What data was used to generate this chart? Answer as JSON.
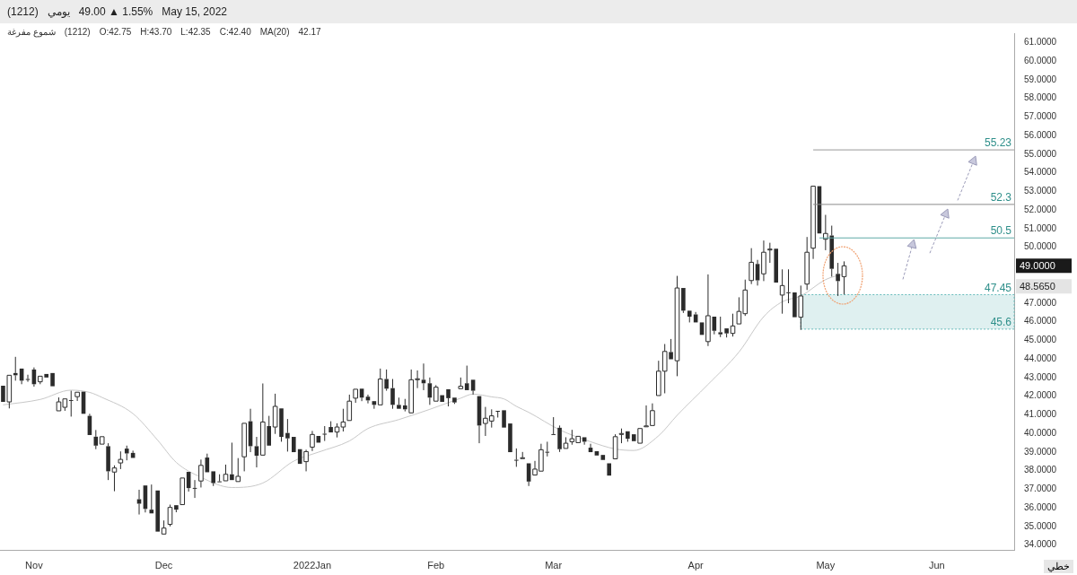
{
  "chart_data": {
    "type": "candlestick",
    "title": "(1212)  يومي  49.00 ▲ 1.55%   May 15, 2022",
    "subtitle": "شموع مفرغة  (1212)  O:42.75  H:43.70  L:42.35  C:42.40    MA(20)  42.17",
    "categories": [
      null,
      null,
      null,
      null,
      null,
      "Nov",
      null,
      null,
      null,
      null,
      null,
      null,
      null,
      null,
      null,
      null,
      null,
      null,
      null,
      null,
      null,
      null,
      null,
      null,
      null,
      null,
      "Dec",
      null,
      null,
      null,
      null,
      null,
      null,
      null,
      null,
      null,
      null,
      null,
      null,
      null,
      null,
      null,
      null,
      null,
      null,
      null,
      null,
      null,
      null,
      null,
      "2022Jan",
      null,
      null,
      null,
      null,
      null,
      null,
      null,
      null,
      null,
      null,
      null,
      null,
      null,
      null,
      null,
      null,
      null,
      null,
      null,
      "Feb",
      null,
      null,
      null,
      null,
      null,
      null,
      null,
      null,
      null,
      null,
      null,
      null,
      null,
      null,
      null,
      null,
      null,
      null,
      "Mar",
      null,
      null,
      null,
      null,
      null,
      null,
      null,
      null,
      null,
      null,
      null,
      null,
      null,
      null,
      null,
      null,
      null,
      null,
      null,
      null,
      null,
      null,
      "Apr",
      null,
      null,
      null,
      null,
      null,
      null,
      null,
      null,
      null,
      null,
      null,
      null,
      null,
      null,
      null,
      null,
      null,
      null,
      null,
      null,
      "May",
      null,
      null,
      null,
      null,
      null,
      null,
      null,
      null,
      null,
      null,
      null,
      null,
      null,
      null,
      null,
      null,
      null,
      "Jun",
      null,
      null,
      null,
      null,
      null,
      null,
      null,
      null,
      null,
      null,
      null,
      null
    ],
    "ohlc": [
      [
        42.56,
        42.56,
        41.69,
        41.69
      ],
      [
        41.69,
        43.12,
        41.34,
        43.12
      ],
      [
        43.24,
        44.11,
        42.83,
        43.12
      ],
      [
        43.48,
        43.48,
        42.64,
        42.83
      ],
      [
        42.92,
        43.15,
        42.77,
        42.9
      ],
      [
        43.43,
        43.54,
        42.51,
        42.64
      ],
      [
        42.77,
        43.07,
        42.64,
        43.07
      ],
      [
        43.19,
        43.19,
        43.0,
        43.0
      ],
      [
        43.24,
        43.24,
        42.53,
        42.53
      ],
      [
        41.21,
        41.93,
        41.21,
        41.69
      ],
      [
        41.4,
        41.85,
        41.21,
        41.85
      ],
      [
        41.79,
        42.29,
        40.9,
        41.75
      ],
      [
        41.97,
        42.21,
        41.74,
        42.21
      ],
      [
        42.24,
        42.24,
        41.05,
        41.05
      ],
      [
        40.94,
        41.05,
        39.91,
        39.91
      ],
      [
        39.82,
        40.18,
        39.15,
        39.34
      ],
      [
        39.42,
        39.82,
        39.42,
        39.82
      ],
      [
        39.31,
        39.47,
        37.49,
        37.96
      ],
      [
        37.92,
        38.28,
        36.89,
        38.14
      ],
      [
        38.41,
        39.03,
        38.08,
        38.6
      ],
      [
        39.18,
        39.34,
        38.55,
        38.92
      ],
      [
        38.95,
        39.07,
        38.68,
        38.68
      ],
      [
        36.46,
        36.97,
        35.64,
        36.22
      ],
      [
        37.2,
        37.2,
        35.75,
        35.94
      ],
      [
        35.9,
        37.25,
        35.7,
        35.7
      ],
      [
        36.93,
        36.93,
        34.72,
        34.72
      ],
      [
        34.59,
        35.32,
        34.59,
        34.91
      ],
      [
        35.11,
        36.17,
        35.0,
        36.02
      ],
      [
        36.14,
        36.14,
        35.76,
        35.9
      ],
      [
        36.17,
        37.6,
        36.17,
        37.6
      ],
      [
        37.93,
        37.93,
        36.87,
        37.06
      ],
      [
        37.07,
        37.49,
        36.53,
        37.05
      ],
      [
        37.44,
        38.59,
        37.09,
        38.28
      ],
      [
        38.7,
        38.91,
        37.91,
        37.91
      ],
      [
        37.96,
        37.96,
        37.17,
        37.33
      ],
      [
        37.42,
        37.8,
        37.4,
        37.4
      ],
      [
        37.45,
        38.32,
        37.45,
        37.8
      ],
      [
        37.8,
        39.5,
        37.49,
        37.49
      ],
      [
        37.41,
        38.67,
        37.41,
        37.69
      ],
      [
        38.74,
        40.54,
        37.96,
        40.54
      ],
      [
        40.65,
        41.32,
        38.99,
        39.31
      ],
      [
        39.31,
        39.81,
        38.17,
        38.8
      ],
      [
        38.83,
        42.68,
        38.83,
        40.61
      ],
      [
        40.39,
        40.94,
        39.34,
        39.34
      ],
      [
        40.34,
        42.13,
        39.97,
        41.45
      ],
      [
        41.34,
        41.34,
        39.55,
        39.81
      ],
      [
        40.02,
        40.77,
        39.02,
        39.73
      ],
      [
        39.81,
        39.81,
        38.99,
        38.99
      ],
      [
        39.15,
        39.15,
        38.36,
        38.36
      ],
      [
        38.48,
        39.12,
        37.96,
        39.02
      ],
      [
        39.26,
        40.13,
        39.05,
        39.94
      ],
      [
        39.86,
        39.86,
        39.5,
        39.5
      ],
      [
        39.98,
        40.39,
        39.59,
        39.96
      ],
      [
        40.34,
        40.65,
        40.05,
        40.05
      ],
      [
        40.07,
        40.54,
        39.78,
        40.34
      ],
      [
        40.34,
        41.32,
        40.1,
        40.61
      ],
      [
        40.69,
        42.08,
        40.69,
        41.73
      ],
      [
        41.89,
        42.37,
        41.64,
        42.37
      ],
      [
        42.4,
        42.4,
        41.73,
        41.92
      ],
      [
        41.97,
        42.08,
        41.61,
        41.77
      ],
      [
        41.73,
        41.73,
        41.32,
        41.53
      ],
      [
        41.53,
        43.48,
        41.53,
        42.92
      ],
      [
        42.92,
        43.43,
        42.29,
        42.4
      ],
      [
        42.43,
        42.92,
        41.32,
        41.53
      ],
      [
        41.53,
        41.92,
        41.32,
        41.32
      ],
      [
        41.5,
        41.85,
        41.18,
        41.29
      ],
      [
        41.1,
        43.43,
        41.1,
        42.88
      ],
      [
        42.91,
        43.38,
        42.43,
        42.93
      ],
      [
        42.88,
        43.75,
        42.32,
        42.69
      ],
      [
        42.69,
        43.0,
        41.53,
        41.92
      ],
      [
        41.73,
        42.59,
        41.73,
        42.48
      ],
      [
        42.05,
        42.05,
        41.69,
        41.69
      ],
      [
        42.37,
        42.37,
        41.45,
        41.89
      ],
      [
        41.92,
        41.92,
        41.58,
        41.66
      ],
      [
        42.4,
        43.0,
        42.4,
        42.53
      ],
      [
        42.69,
        43.64,
        42.32,
        42.32
      ],
      [
        42.88,
        42.88,
        42.08,
        42.29
      ],
      [
        42.0,
        42.0,
        39.47,
        40.42
      ],
      [
        40.53,
        41.42,
        39.86,
        40.81
      ],
      [
        40.66,
        41.29,
        40.31,
        40.94
      ],
      [
        41.21,
        41.21,
        40.85,
        41.19
      ],
      [
        41.24,
        41.24,
        40.31,
        40.31
      ],
      [
        40.53,
        40.53,
        38.99,
        38.99
      ],
      [
        38.58,
        39.19,
        38.2,
        38.56
      ],
      [
        38.67,
        39.0,
        38.67,
        38.69
      ],
      [
        38.39,
        38.39,
        37.17,
        37.41
      ],
      [
        37.76,
        38.52,
        37.76,
        38.08
      ],
      [
        37.97,
        39.44,
        37.97,
        39.12
      ],
      [
        39.01,
        39.55,
        38.76,
        38.99
      ],
      [
        39.96,
        40.87,
        39.94,
        39.94
      ],
      [
        40.3,
        40.42,
        39.0,
        39.15
      ],
      [
        39.19,
        39.79,
        39.19,
        39.47
      ],
      [
        39.55,
        40.19,
        39.39,
        39.71
      ],
      [
        39.5,
        39.84,
        39.5,
        39.84
      ],
      [
        39.79,
        39.79,
        39.39,
        39.55
      ],
      [
        39.23,
        39.44,
        38.99,
        38.99
      ],
      [
        39.04,
        39.04,
        38.81,
        38.81
      ],
      [
        38.84,
        38.84,
        38.57,
        38.57
      ],
      [
        38.39,
        38.39,
        37.73,
        37.73
      ],
      [
        38.63,
        39.95,
        38.63,
        39.82
      ],
      [
        39.97,
        40.26,
        39.47,
        39.99
      ],
      [
        40.11,
        40.11,
        39.55,
        39.71
      ],
      [
        39.95,
        39.95,
        39.58,
        39.58
      ],
      [
        39.47,
        40.26,
        39.47,
        40.26
      ],
      [
        40.38,
        41.5,
        40.38,
        40.4
      ],
      [
        40.42,
        41.61,
        40.42,
        41.22
      ],
      [
        42.03,
        43.9,
        42.03,
        43.34
      ],
      [
        43.34,
        44.8,
        42.15,
        44.4
      ],
      [
        44.37,
        45.07,
        43.98,
        43.98
      ],
      [
        43.9,
        48.46,
        43.07,
        47.81
      ],
      [
        47.81,
        47.81,
        46.47,
        46.59
      ],
      [
        46.59,
        46.59,
        45.96,
        46.27
      ],
      [
        46.39,
        46.52,
        45.96,
        45.96
      ],
      [
        45.96,
        45.96,
        45.29,
        45.29
      ],
      [
        44.93,
        48.54,
        44.69,
        46.32
      ],
      [
        46.27,
        46.27,
        45.32,
        45.51
      ],
      [
        45.43,
        46.27,
        45.17,
        45.32
      ],
      [
        45.64,
        45.64,
        45.15,
        45.37
      ],
      [
        45.37,
        46.43,
        45.2,
        45.77
      ],
      [
        45.88,
        47.31,
        45.88,
        46.55
      ],
      [
        46.43,
        48.26,
        46.31,
        47.7
      ],
      [
        48.21,
        49.95,
        48.02,
        49.19
      ],
      [
        49.1,
        49.32,
        47.94,
        48.22
      ],
      [
        48.57,
        50.36,
        48.18,
        49.73
      ],
      [
        49.88,
        50.24,
        49.16,
        49.9
      ],
      [
        49.92,
        49.92,
        48.1,
        48.1
      ],
      [
        47.43,
        48.81,
        46.43,
        47.94
      ],
      [
        47.58,
        48.81,
        46.99,
        47.56
      ],
      [
        47.57,
        47.57,
        46.24,
        46.24
      ],
      [
        46.24,
        47.94,
        45.56,
        47.38
      ],
      [
        48.02,
        50.55,
        47.7,
        49.73
      ],
      [
        49.95,
        53.28,
        49.37,
        53.28
      ],
      [
        53.28,
        53.28,
        50.74,
        50.74
      ],
      [
        50.43,
        51.74,
        49.84,
        50.74
      ],
      [
        50.63,
        51.16,
        48.42,
        48.84
      ],
      [
        48.57,
        49.16,
        47.38,
        48.18
      ],
      [
        48.42,
        49.24,
        47.46,
        49.0
      ],
      null,
      null,
      null,
      null,
      null,
      null,
      null,
      null,
      null,
      null,
      null,
      null,
      null,
      null,
      null,
      null,
      null,
      null,
      null,
      null,
      null,
      null,
      null,
      null,
      null,
      null,
      null
    ],
    "series": [
      {
        "type": "line",
        "color": "#c8c8c8",
        "values": [
          41.53,
          null,
          null,
          null,
          null,
          null,
          41.82,
          null,
          null,
          null,
          null,
          42.32,
          null,
          null,
          42.2,
          null,
          41.93,
          null,
          null,
          null,
          null,
          41.06,
          null,
          null,
          null,
          39.63,
          null,
          null,
          38.44,
          null,
          null,
          null,
          37.64,
          null,
          null,
          null,
          null,
          37.09,
          null,
          null,
          null,
          null,
          37.33,
          null,
          null,
          null,
          null,
          38.51,
          null,
          null,
          null,
          38.99,
          null,
          null,
          null,
          null,
          39.59,
          null,
          null,
          40.26,
          null,
          null,
          null,
          null,
          40.74,
          null,
          null,
          null,
          null,
          41.29,
          null,
          null,
          null,
          null,
          41.89,
          null,
          42.11,
          null,
          null,
          41.96,
          null,
          41.85,
          null,
          41.45,
          null,
          41.13,
          null,
          null,
          null,
          null,
          40.19,
          null,
          null,
          null,
          null,
          39.55,
          null,
          null,
          null,
          39.16,
          null,
          null,
          39.08,
          null,
          null,
          null,
          39.87,
          null,
          null,
          40.97,
          null,
          null,
          null,
          null,
          42.63,
          null,
          null,
          null,
          null,
          44.37,
          null,
          null,
          null,
          46.27,
          null,
          null,
          47.07,
          null,
          null,
          47.38,
          null,
          null,
          null,
          48.26,
          null,
          null,
          48.57,
          null,
          null,
          null,
          null,
          null,
          null,
          null,
          null,
          null,
          null,
          null,
          null,
          null,
          null,
          null,
          null,
          null,
          null,
          null,
          null,
          null,
          null,
          null,
          null,
          null,
          null,
          null
        ]
      }
    ],
    "ylim": [
      33.7,
      61.5
    ],
    "yticks": [
      {
        "value": 34,
        "label": "34.0000"
      },
      {
        "value": 35,
        "label": "35.0000"
      },
      {
        "value": 36,
        "label": "36.0000"
      },
      {
        "value": 37,
        "label": "37.0000"
      },
      {
        "value": 38,
        "label": "38.0000"
      },
      {
        "value": 39,
        "label": "39.0000"
      },
      {
        "value": 40,
        "label": "40.0000"
      },
      {
        "value": 41,
        "label": "41.0000"
      },
      {
        "value": 42,
        "label": "42.0000"
      },
      {
        "value": 43,
        "label": "43.0000"
      },
      {
        "value": 44,
        "label": "44.0000"
      },
      {
        "value": 45,
        "label": "45.0000"
      },
      {
        "value": 46,
        "label": "46.0000"
      },
      {
        "value": 47,
        "label": "47.0000"
      },
      {
        "value": 50,
        "label": "50.0000"
      },
      {
        "value": 51,
        "label": "51.0000"
      },
      {
        "value": 52,
        "label": "52.0000"
      },
      {
        "value": 53,
        "label": "53.0000"
      },
      {
        "value": 54,
        "label": "54.0000"
      },
      {
        "value": 55,
        "label": "55.0000"
      },
      {
        "value": 56,
        "label": "56.0000"
      },
      {
        "value": 57,
        "label": "57.0000"
      },
      {
        "value": 58,
        "label": "58.0000"
      },
      {
        "value": 59,
        "label": "59.0000"
      },
      {
        "value": 60,
        "label": "60.0000"
      },
      {
        "value": 61,
        "label": "61.0000"
      }
    ],
    "ref_lines": [
      {
        "axis": "y",
        "value": 55.23,
        "label": "55.23",
        "color": "#9a9a9a"
      },
      {
        "axis": "y",
        "value": 52.3,
        "label": "52.3",
        "color": "#8a8a8a"
      },
      {
        "axis": "y",
        "value": 50.5,
        "label": "50.5",
        "color": "#5fa9a6"
      }
    ],
    "bands": [
      {
        "axis": "y",
        "from": 45.6,
        "to": 47.45,
        "label": "47.45",
        "color": "#dff0f0"
      }
    ],
    "annotations": [
      {
        "text": "45.6",
        "y": 45.6
      },
      "49.0000",
      "48.5650",
      "خطي"
    ]
  }
}
